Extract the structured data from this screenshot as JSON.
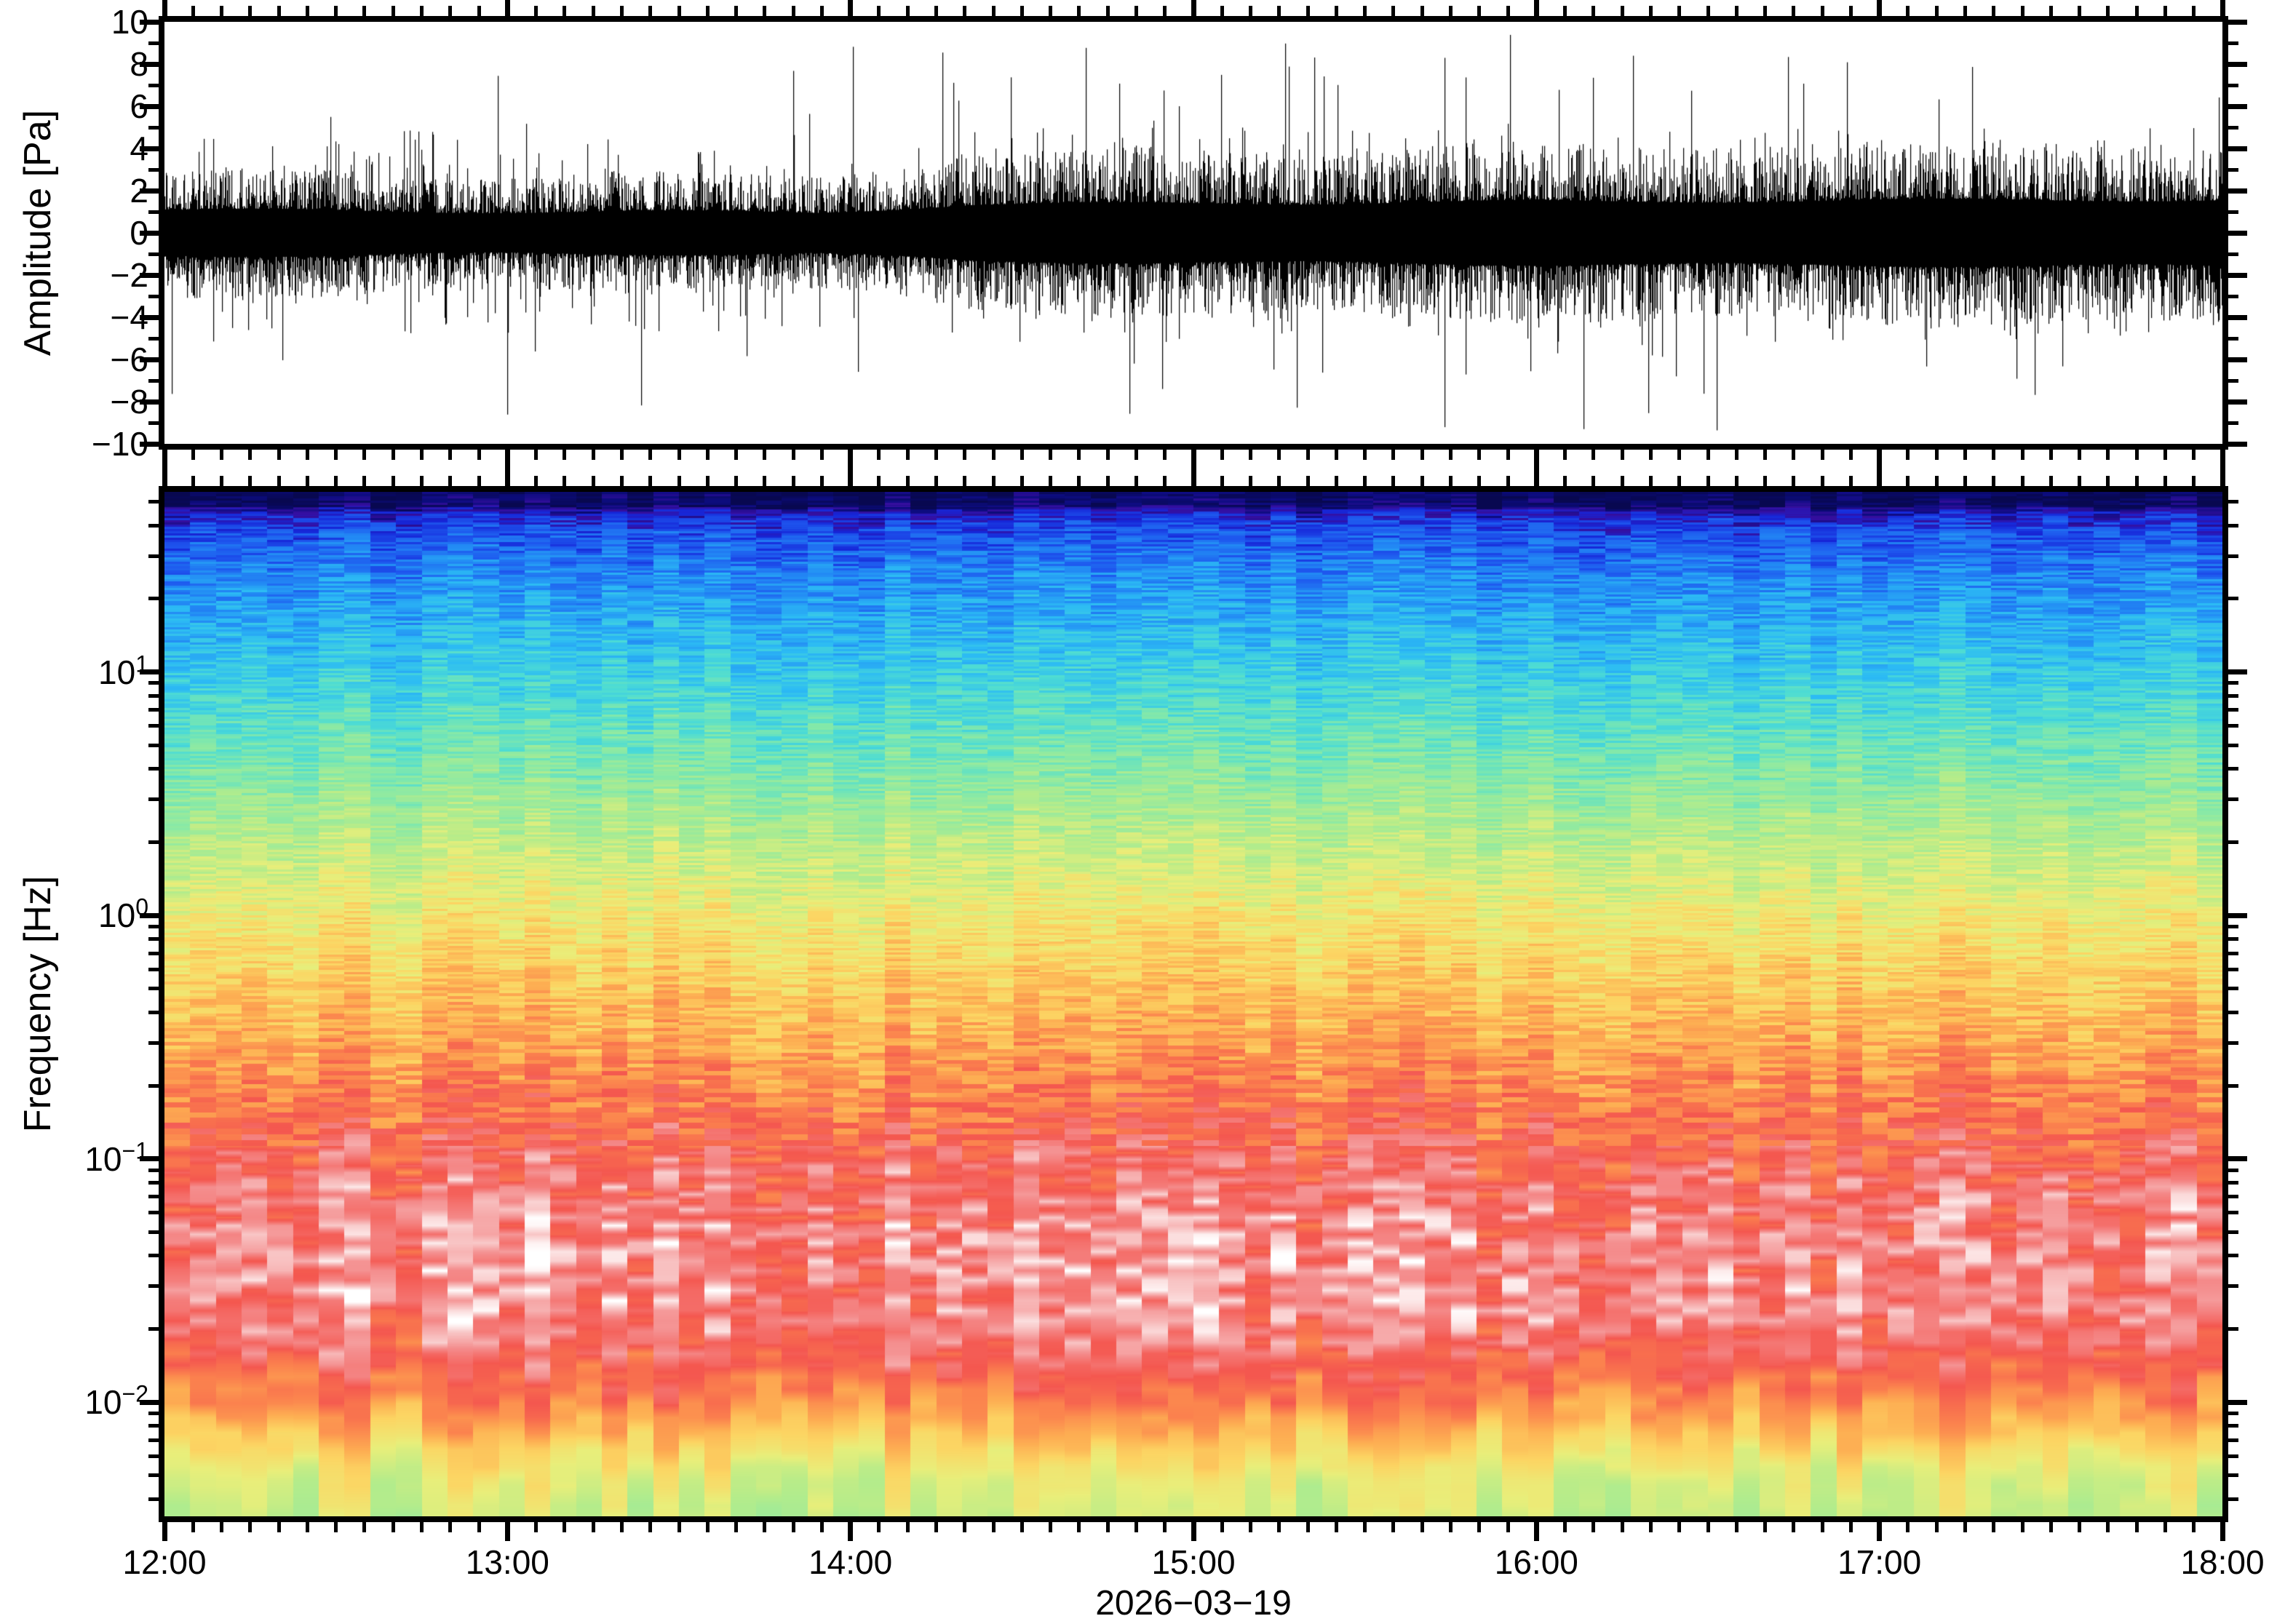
{
  "figure": {
    "background": "#ffffff",
    "frame_color": "#000000",
    "date_label": "2026−03−19"
  },
  "waveform_panel": {
    "ylabel": "Amplitude [Pa]",
    "ylim": [
      -10,
      10
    ],
    "yticks": [
      {
        "value": 10,
        "label": "10"
      },
      {
        "value": 8,
        "label": "8"
      },
      {
        "value": 6,
        "label": "6"
      },
      {
        "value": 4,
        "label": "4"
      },
      {
        "value": 2,
        "label": "2"
      },
      {
        "value": 0,
        "label": "0"
      },
      {
        "value": -2,
        "label": "−2"
      },
      {
        "value": -4,
        "label": "−4"
      },
      {
        "value": -6,
        "label": "−6"
      },
      {
        "value": -8,
        "label": "−8"
      },
      {
        "value": -10,
        "label": "−10"
      }
    ],
    "yminor_step": 1,
    "trace_color": "#000000"
  },
  "spectrogram_panel": {
    "ylabel": "Frequency [Hz]",
    "yscale": "log",
    "freq_range_hz": [
      0.0034,
      55
    ],
    "decade_ticks": [
      {
        "exponent": 1,
        "label_base": "10",
        "label_exp": "1"
      },
      {
        "exponent": 0,
        "label_base": "10",
        "label_exp": "0"
      },
      {
        "exponent": -1,
        "label_base": "10",
        "label_exp": "−1"
      },
      {
        "exponent": -2,
        "label_base": "10",
        "label_exp": "−2"
      }
    ]
  },
  "time_axis": {
    "start": "12:00",
    "end": "18:00",
    "tick_labels": [
      "12:00",
      "13:00",
      "14:00",
      "15:00",
      "16:00",
      "17:00",
      "18:00"
    ],
    "tick_hours": [
      0,
      1,
      2,
      3,
      4,
      5,
      6
    ],
    "minor_step_minutes": 5,
    "date": "2026−03−19"
  },
  "chart_data": [
    {
      "type": "line",
      "title": "",
      "ylabel": "Amplitude [Pa]",
      "xlabel": "2026−03−19",
      "x_ticks": [
        "12:00",
        "13:00",
        "14:00",
        "15:00",
        "16:00",
        "17:00",
        "18:00"
      ],
      "ylim": [
        -10,
        10
      ],
      "grid": false,
      "series": [
        {
          "name": "infrasound-pressure-trace",
          "description": "Dense broadband pressure noise drawn as min/max black bars. Solid core about ±2 Pa from 12:00 to 14:00, widening to about ±3 Pa after 14:00; frequent transient spikes reaching ±6 to ±10 Pa, more numerous after 14:00.",
          "envelope_nodes_hours_pa": [
            [
              0,
              2.05
            ],
            [
              1.0,
              2.0
            ],
            [
              1.9,
              2.05
            ],
            [
              2.05,
              2.3
            ],
            [
              2.35,
              2.8
            ],
            [
              3.0,
              2.9
            ],
            [
              4.0,
              2.95
            ],
            [
              5.0,
              2.95
            ],
            [
              6.0,
              3.05
            ]
          ],
          "spike_max_pa": 9.95,
          "spike_prob_early": 0.014,
          "spike_prob_late": 0.03,
          "seed": 1234567
        }
      ]
    },
    {
      "type": "heatmap",
      "title": "",
      "ylabel": "Frequency [Hz]",
      "x_range": [
        "12:00",
        "18:00"
      ],
      "y_range_hz": [
        0.0034,
        55
      ],
      "y_scale": "log",
      "y_ticks": [
        "10^1",
        "10^0",
        "10^-1",
        "10^-2"
      ],
      "legend": "none",
      "description": "Spectrogram of 6 h of infrasound. Power (color) increases from high to low frequency: dark navy band at top (~50 Hz), blues 10-40 Hz, cyan/green 3-10 Hz, yellow/orange 0.5-2 Hz, red ~0.3 Hz, mottled pink/white 0.03-0.2 Hz (highest power), strong red band ~0.02 Hz, then orange-yellow-green rolloff below 0.01 Hz with mint patches at the bottom.",
      "render": {
        "columns": 80,
        "seed": 424242,
        "colormap_stops": [
          [
            0.0,
            "#080850"
          ],
          [
            0.03,
            "#0c0c80"
          ],
          [
            0.055,
            "#360e9e"
          ],
          [
            0.085,
            "#1626d8"
          ],
          [
            0.13,
            "#1e56ee"
          ],
          [
            0.19,
            "#2288f4"
          ],
          [
            0.26,
            "#2cbbf4"
          ],
          [
            0.34,
            "#4ddcd4"
          ],
          [
            0.42,
            "#86e9a8"
          ],
          [
            0.5,
            "#b6ec8a"
          ],
          [
            0.575,
            "#e9ee7a"
          ],
          [
            0.64,
            "#fcd563"
          ],
          [
            0.7,
            "#fdad52"
          ],
          [
            0.76,
            "#fb834e"
          ],
          [
            0.83,
            "#f4574f"
          ],
          [
            0.9,
            "#f48c8c"
          ],
          [
            0.95,
            "#f8c3c3"
          ],
          [
            1.0,
            "#ffffff"
          ]
        ],
        "power_profile_nodes": [
          [
            0.0,
            0.012
          ],
          [
            0.013,
            0.015
          ],
          [
            0.017,
            0.052
          ],
          [
            0.023,
            0.085
          ],
          [
            0.04,
            0.13
          ],
          [
            0.08,
            0.19
          ],
          [
            0.13,
            0.25
          ],
          [
            0.2,
            0.33
          ],
          [
            0.28,
            0.43
          ],
          [
            0.35,
            0.52
          ],
          [
            0.42,
            0.6
          ],
          [
            0.47,
            0.645
          ],
          [
            0.53,
            0.7
          ],
          [
            0.59,
            0.77
          ],
          [
            0.65,
            0.84
          ],
          [
            0.7,
            0.88
          ],
          [
            0.76,
            0.9
          ],
          [
            0.815,
            0.885
          ],
          [
            0.85,
            0.83
          ],
          [
            0.88,
            0.77
          ],
          [
            0.905,
            0.71
          ],
          [
            0.935,
            0.63
          ],
          [
            0.965,
            0.56
          ],
          [
            1.0,
            0.53
          ]
        ],
        "fine_noise_nodes": [
          [
            0.0,
            0.012
          ],
          [
            0.03,
            0.05
          ],
          [
            0.1,
            0.055
          ],
          [
            0.3,
            0.05
          ],
          [
            0.5,
            0.05
          ],
          [
            0.62,
            0.07
          ],
          [
            0.7,
            0.085
          ],
          [
            0.8,
            0.085
          ],
          [
            0.86,
            0.055
          ],
          [
            0.92,
            0.035
          ],
          [
            1.0,
            0.025
          ]
        ],
        "column_noise_nodes": [
          [
            0.0,
            0.02
          ],
          [
            0.3,
            0.028
          ],
          [
            0.5,
            0.032
          ],
          [
            0.65,
            0.045
          ],
          [
            0.8,
            0.05
          ],
          [
            1.0,
            0.06
          ]
        ],
        "corr_len_nodes": [
          [
            0.0,
            3
          ],
          [
            0.45,
            3
          ],
          [
            0.55,
            5
          ],
          [
            0.65,
            9
          ],
          [
            0.75,
            13
          ],
          [
            0.85,
            16
          ],
          [
            0.93,
            24
          ],
          [
            1.0,
            30
          ]
        ]
      }
    }
  ]
}
